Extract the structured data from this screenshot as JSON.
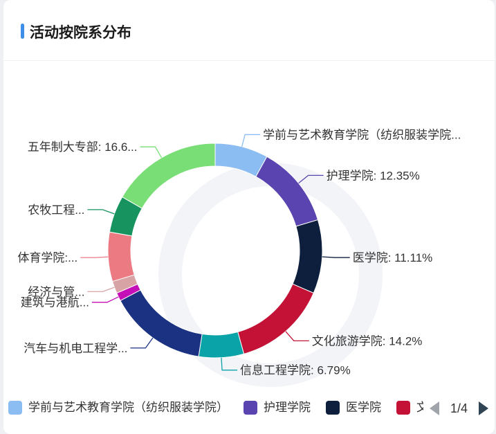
{
  "card": {
    "title": "活动按院系分布"
  },
  "chart_data": {
    "type": "pie",
    "variant": "donut",
    "title": "活动按院系分布",
    "labels": [
      "学前与艺术教育学院（纺织服装学院...",
      "护理学院: 12.35%",
      "医学院: 11.11%",
      "文化旅游学院: 14.2%",
      "信息工程学院: 6.79%",
      "汽车与机电工程学...",
      "建筑与港航...",
      "经济与管...",
      "体育学院:...",
      "农牧工程...",
      "五年制大专部: 16.6..."
    ],
    "series": [
      {
        "name": "学前与艺术教育学院（纺织服装学院）",
        "value": 8.02,
        "color": "#8bbdf3"
      },
      {
        "name": "护理学院",
        "value": 12.35,
        "color": "#5a45b0"
      },
      {
        "name": "医学院",
        "value": 11.11,
        "color": "#0d1f3c"
      },
      {
        "name": "文化旅游学院",
        "value": 14.2,
        "color": "#c41237"
      },
      {
        "name": "信息工程学院",
        "value": 6.79,
        "color": "#0aa3a8"
      },
      {
        "name": "汽车与机电工程学院",
        "value": 14.81,
        "color": "#1b3182"
      },
      {
        "name": "建筑与港航学院",
        "value": 1.23,
        "color": "#c40fb8"
      },
      {
        "name": "经济与管理学院",
        "value": 1.85,
        "color": "#d7a3a5"
      },
      {
        "name": "体育学院",
        "value": 7.41,
        "color": "#ec7a83"
      },
      {
        "name": "农牧工程学院",
        "value": 5.56,
        "color": "#16935f"
      },
      {
        "name": "五年制大专部",
        "value": 16.67,
        "color": "#7ade77"
      }
    ]
  },
  "legend": {
    "items": [
      {
        "label": "学前与艺术教育学院（纺织服装学院）",
        "color": "#8bbdf3"
      },
      {
        "label": "护理学院",
        "color": "#5a45b0"
      },
      {
        "label": "医学院",
        "color": "#0d1f3c"
      },
      {
        "label": "文化旅游学院",
        "color": "#c41237"
      }
    ],
    "page": "1/4"
  }
}
